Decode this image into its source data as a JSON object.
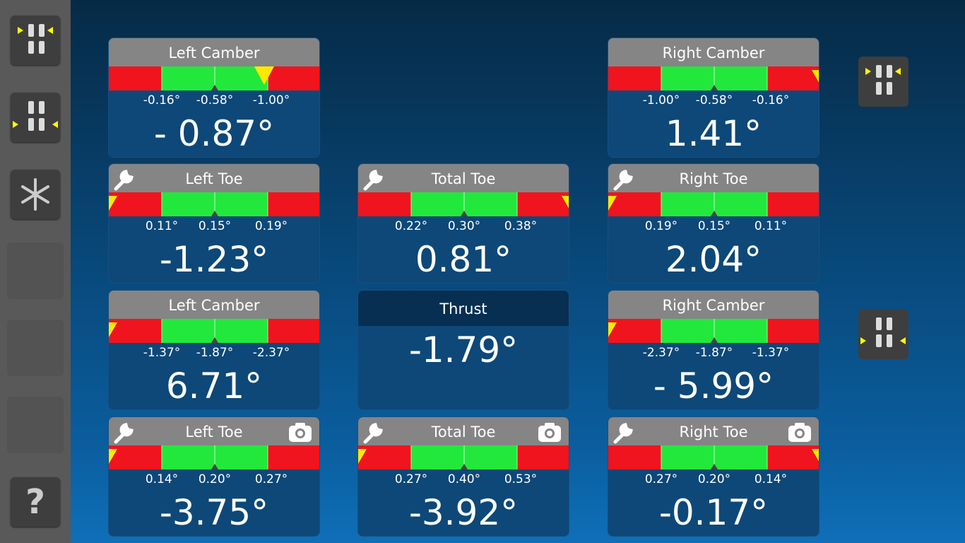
{
  "sidebar": {
    "help": "?"
  },
  "rows": [
    [
      {
        "title": "Left Camber",
        "ticks": [
          "-0.16°",
          "-0.58°",
          "-1.00°"
        ],
        "value": "- 0.87°",
        "wrench": false,
        "camera": false,
        "pointer": "inner-right"
      },
      null,
      {
        "title": "Right Camber",
        "ticks": [
          "-1.00°",
          "-0.58°",
          "-0.16°"
        ],
        "value": "1.41°",
        "wrench": false,
        "camera": false,
        "pointer": "right"
      }
    ],
    [
      {
        "title": "Left Toe",
        "ticks": [
          "0.11°",
          "0.15°",
          "0.19°"
        ],
        "value": "-1.23°",
        "wrench": true,
        "camera": false,
        "pointer": "left"
      },
      {
        "title": "Total Toe",
        "ticks": [
          "0.22°",
          "0.30°",
          "0.38°"
        ],
        "value": "0.81°",
        "wrench": true,
        "camera": false,
        "pointer": "right"
      },
      {
        "title": "Right Toe",
        "ticks": [
          "0.19°",
          "0.15°",
          "0.11°"
        ],
        "value": "2.04°",
        "wrench": true,
        "camera": false,
        "pointer": "left"
      }
    ],
    [
      {
        "title": "Left Camber",
        "ticks": [
          "-1.37°",
          "-1.87°",
          "-2.37°"
        ],
        "value": "6.71°",
        "wrench": false,
        "camera": false,
        "pointer": "left"
      },
      {
        "title": "Thrust",
        "value": "-1.79°"
      },
      {
        "title": "Right Camber",
        "ticks": [
          "-2.37°",
          "-1.87°",
          "-1.37°"
        ],
        "value": "- 5.99°",
        "wrench": false,
        "camera": false,
        "pointer": "left"
      }
    ],
    [
      {
        "title": "Left Toe",
        "ticks": [
          "0.14°",
          "0.20°",
          "0.27°"
        ],
        "value": "-3.75°",
        "wrench": true,
        "camera": true,
        "pointer": "left"
      },
      {
        "title": "Total Toe",
        "ticks": [
          "0.27°",
          "0.40°",
          "0.53°"
        ],
        "value": "-3.92°",
        "wrench": true,
        "camera": true,
        "pointer": "left"
      },
      {
        "title": "Right Toe",
        "ticks": [
          "0.27°",
          "0.20°",
          "0.14°"
        ],
        "value": "-0.17°",
        "wrench": true,
        "camera": true,
        "pointer": "right"
      }
    ]
  ]
}
